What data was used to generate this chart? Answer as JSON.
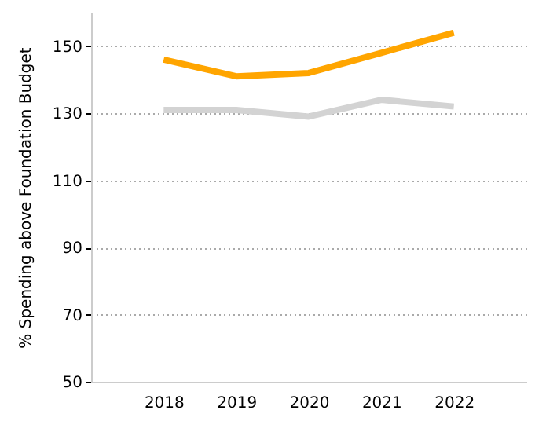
{
  "chart_data": {
    "type": "line",
    "ylabel": "% Spending above Foundation Budget",
    "x": [
      2018,
      2019,
      2020,
      2021,
      2022
    ],
    "xlim": [
      2017,
      2023
    ],
    "xticks": [
      2018,
      2019,
      2020,
      2021,
      2022
    ],
    "ylim": [
      50,
      160
    ],
    "yticks": [
      50,
      70,
      90,
      110,
      130,
      150
    ],
    "grid": "y",
    "marker": "none",
    "line_style": "solid",
    "series": [
      {
        "color": "#ffa500",
        "values": [
          146,
          141,
          142,
          148,
          154
        ]
      },
      {
        "color": "#d3d3d3",
        "values": [
          131,
          131,
          129,
          134,
          132
        ]
      }
    ]
  }
}
